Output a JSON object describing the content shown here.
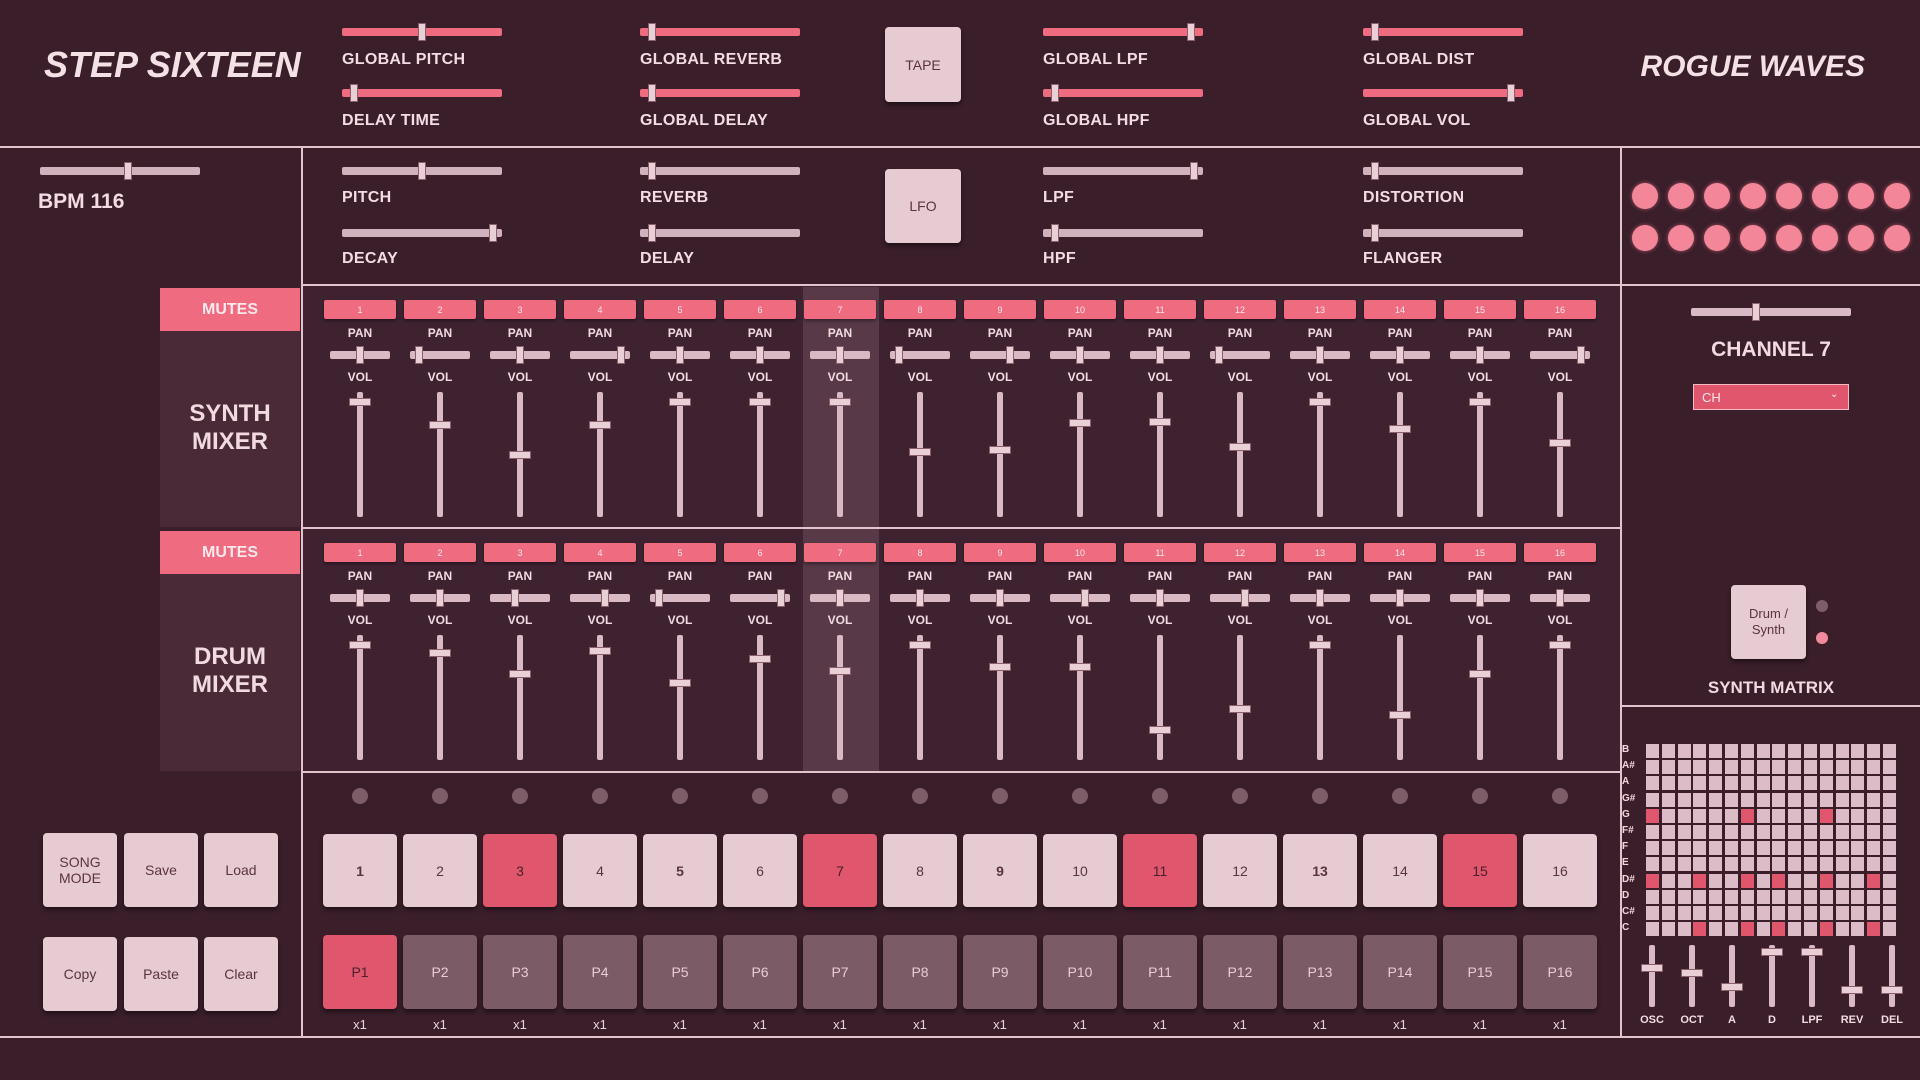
{
  "header": {
    "title": "STEP SIXTEEN",
    "brand": "ROGUE WAVES"
  },
  "global_controls": [
    "GLOBAL PITCH",
    "DELAY TIME",
    "GLOBAL REVERB",
    "GLOBAL DELAY",
    "GLOBAL LPF",
    "GLOBAL HPF",
    "GLOBAL DIST",
    "GLOBAL VOL"
  ],
  "tape_button": "TAPE",
  "bpm": "BPM 116",
  "lfo_controls": [
    "PITCH",
    "DECAY",
    "REVERB",
    "DELAY",
    "LPF",
    "HPF",
    "DISTORTION",
    "FLANGER"
  ],
  "lfo_button": "LFO",
  "synth_mixer": {
    "mutes": "MUTES",
    "title": "SYNTH MIXER"
  },
  "drum_mixer": {
    "mutes": "MUTES",
    "title": "DRUM MIXER"
  },
  "channels": [
    "1",
    "2",
    "3",
    "4",
    "5",
    "6",
    "7",
    "8",
    "9",
    "10",
    "11",
    "12",
    "13",
    "14",
    "15",
    "16"
  ],
  "pan_label": "PAN",
  "vol_label": "VOL",
  "channel_panel": {
    "title": "CHANNEL 7",
    "select": "CH",
    "toggle": "Drum / Synth",
    "matrix_title": "SYNTH MATRIX",
    "notes": [
      "B",
      "A#",
      "A",
      "G#",
      "G",
      "F#",
      "F",
      "E",
      "D#",
      "D",
      "C#",
      "C"
    ],
    "params": [
      "OSC",
      "OCT",
      "A",
      "D",
      "LPF",
      "REV",
      "DEL"
    ]
  },
  "transport": [
    "SONG MODE",
    "Save",
    "Load",
    "Copy",
    "Paste",
    "Clear"
  ],
  "steps": [
    "1",
    "2",
    "3",
    "4",
    "5",
    "6",
    "7",
    "8",
    "9",
    "10",
    "11",
    "12",
    "13",
    "14",
    "15",
    "16"
  ],
  "patterns": [
    "P1",
    "P2",
    "P3",
    "P4",
    "P5",
    "P6",
    "P7",
    "P8",
    "P9",
    "P10",
    "P11",
    "P12",
    "P13",
    "P14",
    "P15",
    "P16"
  ],
  "repeats": [
    "x1",
    "x1",
    "x1",
    "x1",
    "x1",
    "x1",
    "x1",
    "x1",
    "x1",
    "x1",
    "x1",
    "x1",
    "x1",
    "x1",
    "x1",
    "x1"
  ]
}
